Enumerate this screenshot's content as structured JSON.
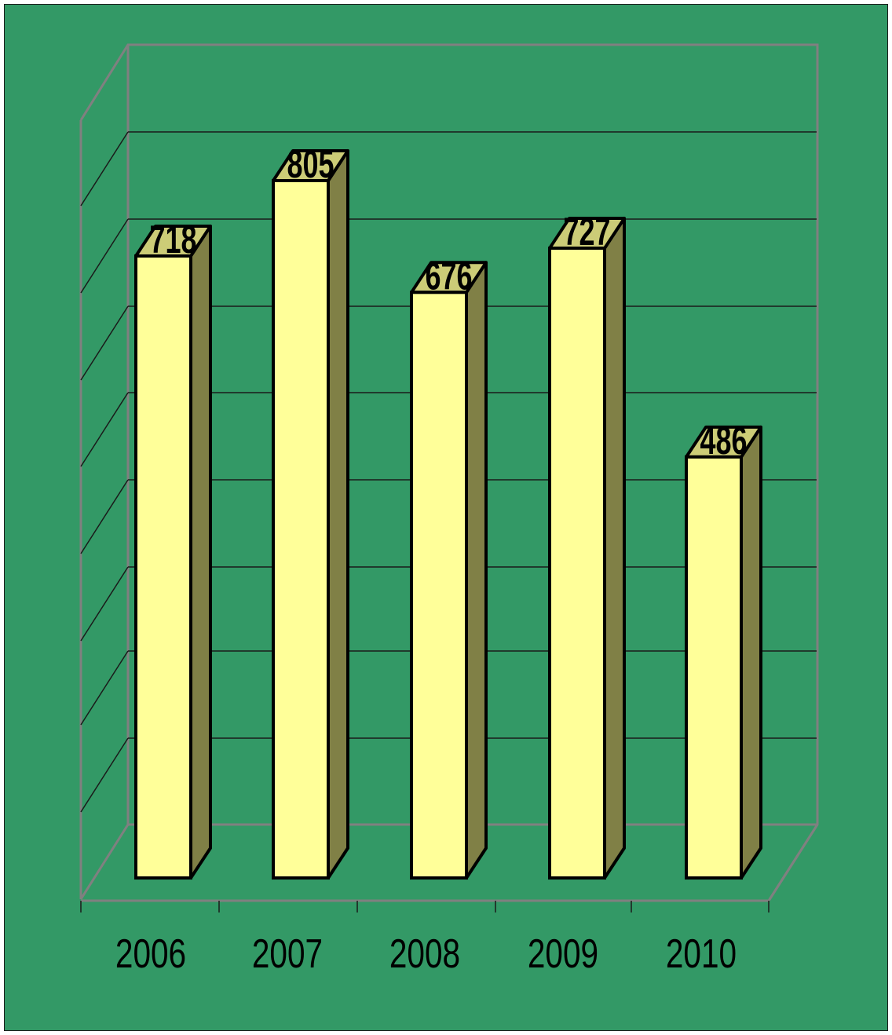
{
  "chart_data": {
    "type": "bar",
    "style": "3d-column",
    "categories": [
      "2006",
      "2007",
      "2008",
      "2009",
      "2010"
    ],
    "values": [
      718,
      805,
      676,
      727,
      486
    ],
    "title": "",
    "xlabel": "",
    "ylabel": "",
    "ylim": [
      0,
      900
    ],
    "grid": true,
    "legend": "none",
    "data_labels": true,
    "colors": {
      "background": "#339966",
      "bar_front": "#FFFF99",
      "bar_top": "#CCCC77",
      "bar_side": "#808046",
      "bar_outline": "#000000",
      "frame": "#808080",
      "gridline": "#1a1a1a"
    }
  }
}
